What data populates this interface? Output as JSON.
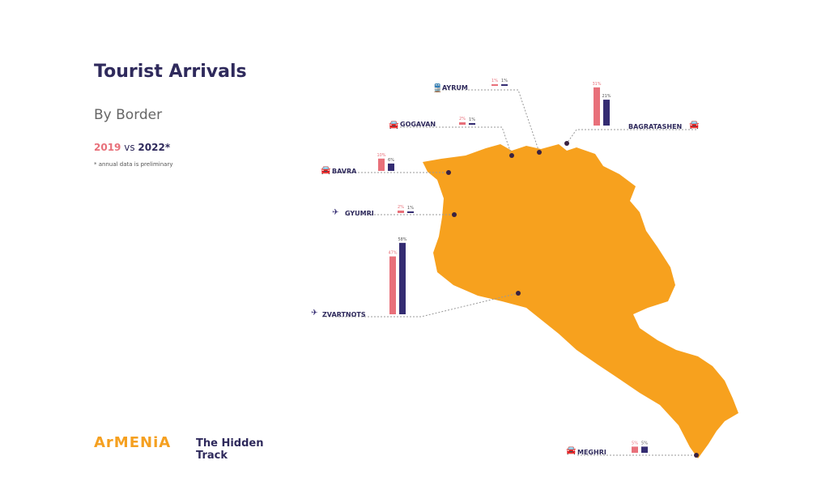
{
  "title": "Tourist Arrivals",
  "subtitle": "By Border",
  "compare": {
    "year1": "2019",
    "vs": "vs",
    "year2": "2022*"
  },
  "note": "* annual data is preliminary",
  "logo": "ArMENiA",
  "tagline": "The Hidden Track",
  "colors": {
    "y2019": "#e8707a",
    "y2022": "#342c72",
    "map": "#f7a11e",
    "dot": "#3a2240"
  },
  "chart_data": {
    "type": "bar",
    "series": [
      {
        "name": "2019"
      },
      {
        "name": "2022*"
      }
    ],
    "unit": "%",
    "borders": [
      {
        "name": "AYRUM",
        "icon": "train-icon",
        "v2019": 1,
        "v2022": 1
      },
      {
        "name": "GOGAVAN",
        "icon": "car-icon",
        "v2019": 2,
        "v2022": 1
      },
      {
        "name": "BAGRATASHEN",
        "icon": "car-icon",
        "v2019": 31,
        "v2022": 21
      },
      {
        "name": "BAVRA",
        "icon": "car-icon",
        "v2019": 10,
        "v2022": 6
      },
      {
        "name": "GYUMRI",
        "icon": "plane-icon",
        "v2019": 2,
        "v2022": 1
      },
      {
        "name": "ZVARTNOTS",
        "icon": "plane-icon",
        "v2019": 47,
        "v2022": 58
      },
      {
        "name": "MEGHRI",
        "icon": "car-icon",
        "v2019": 5,
        "v2022": 5
      }
    ]
  }
}
